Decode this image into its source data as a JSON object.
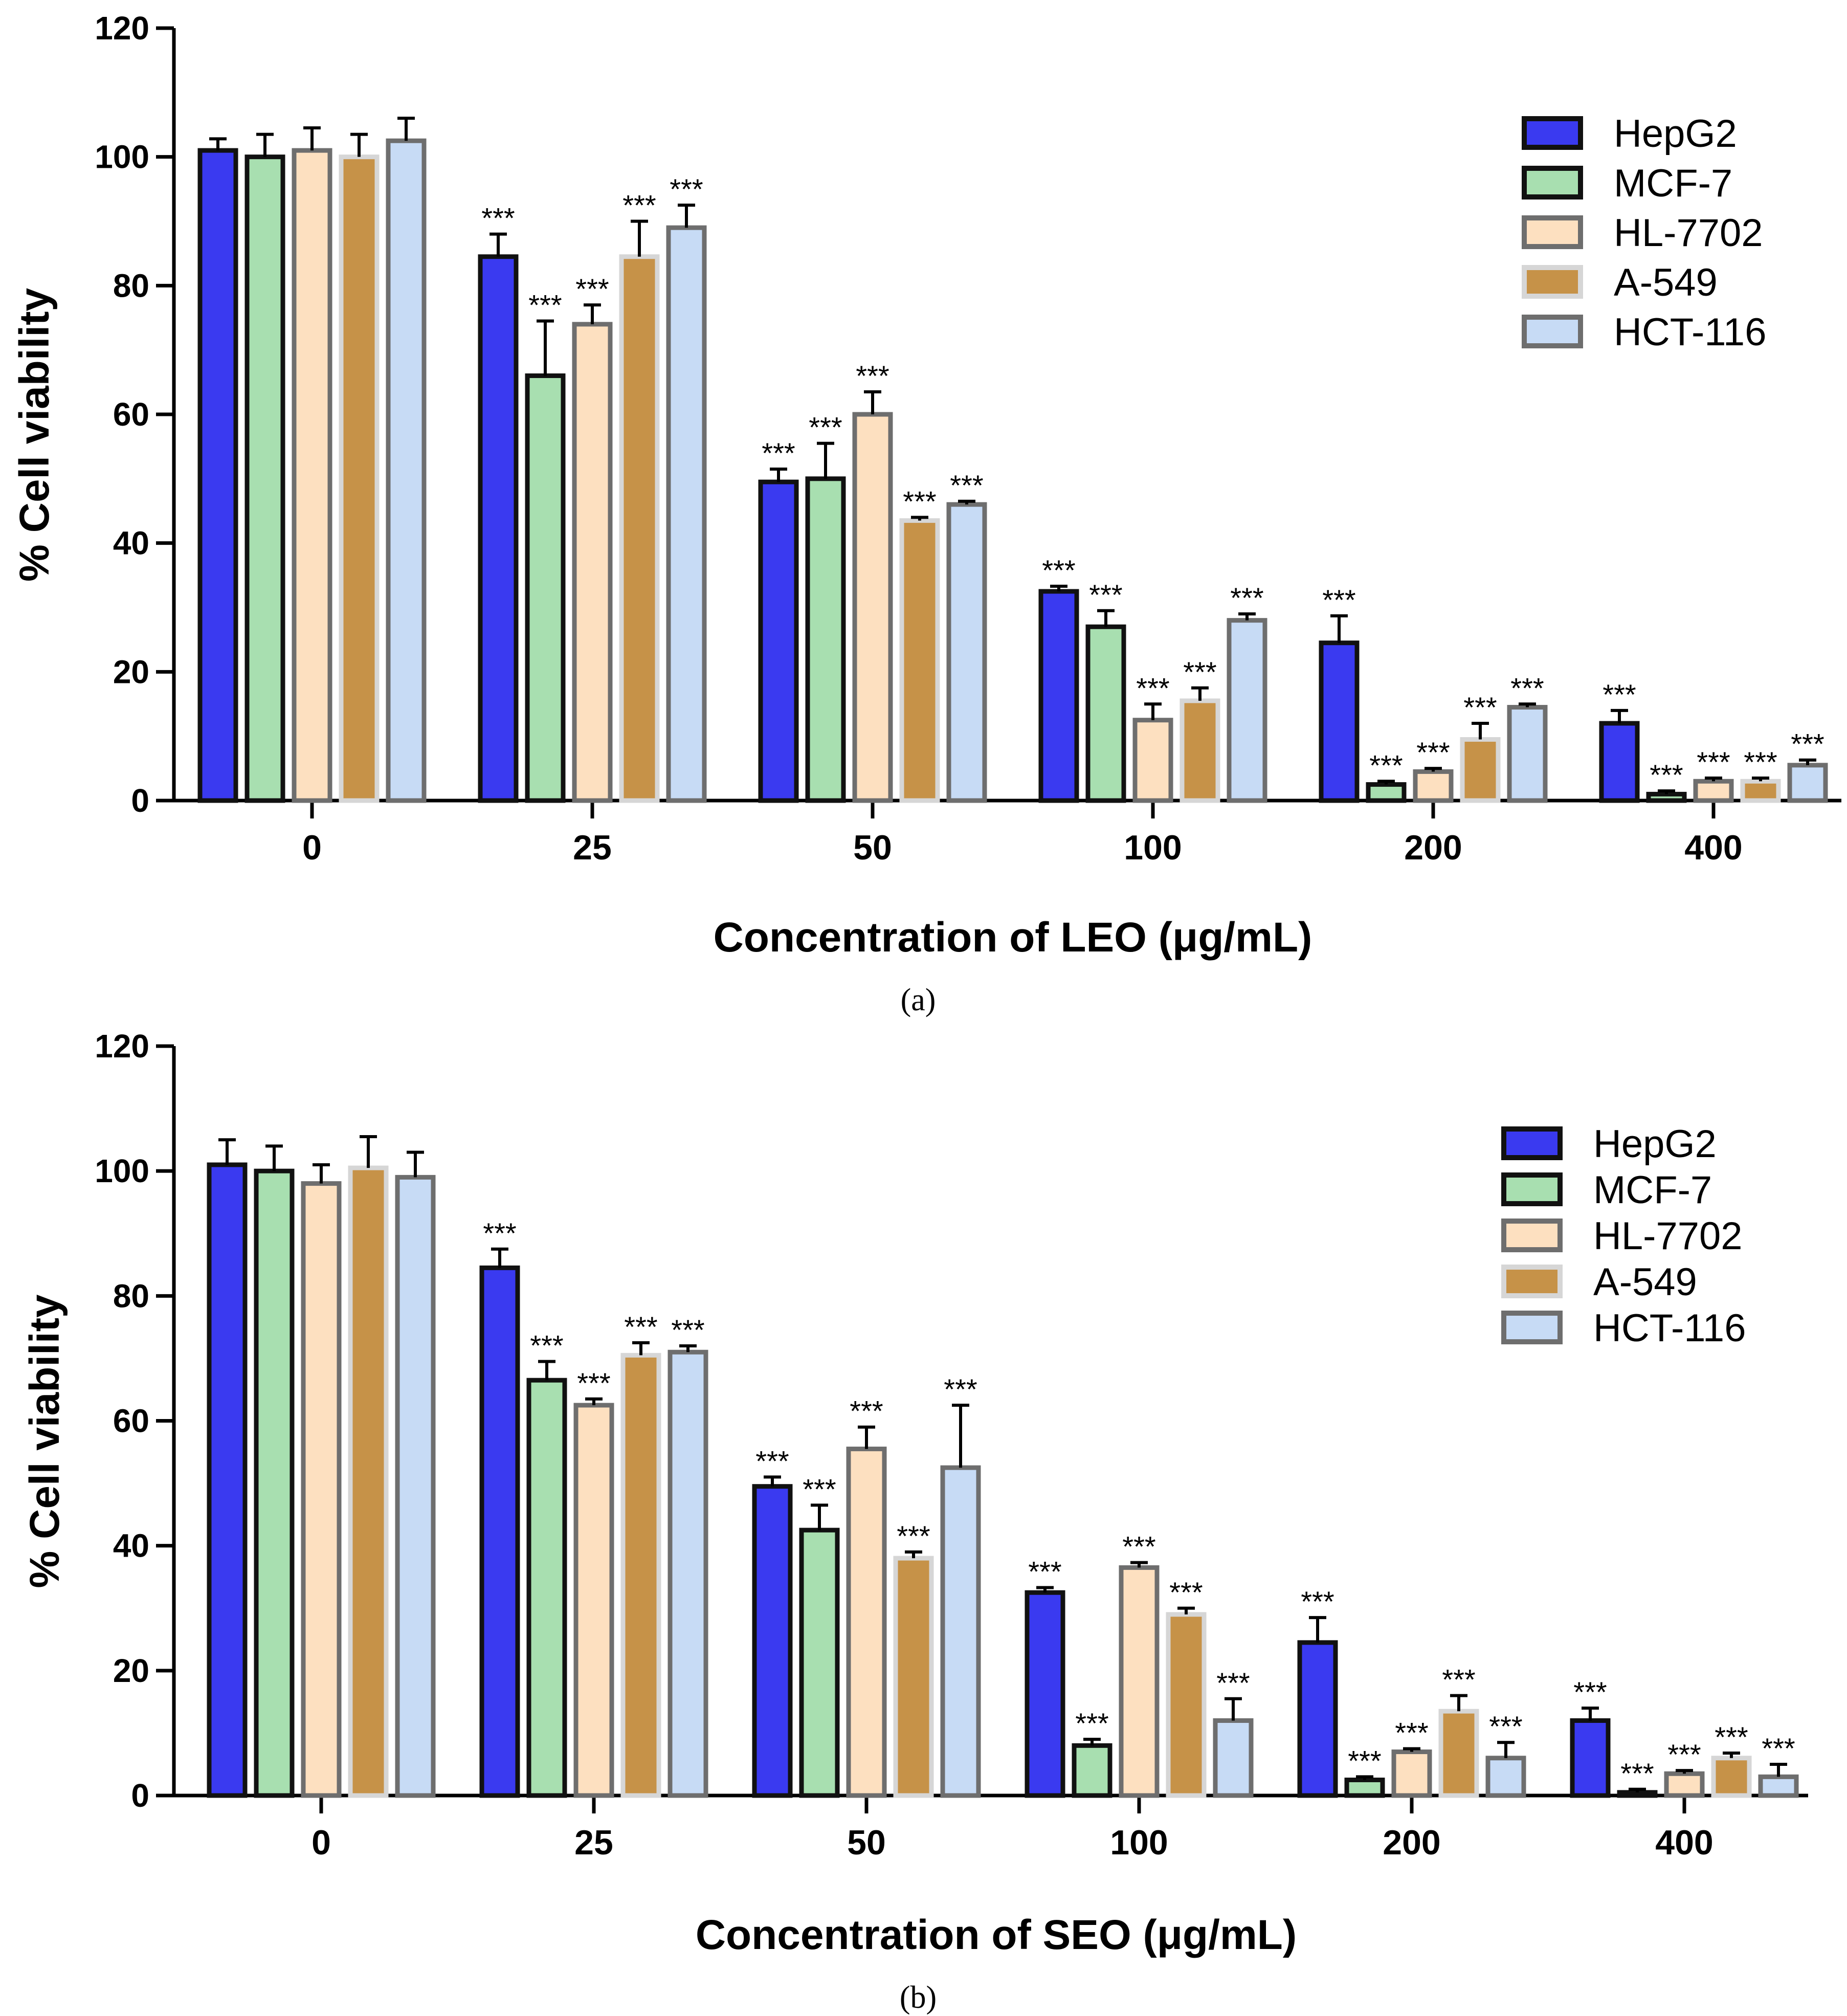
{
  "chart_data": [
    {
      "type": "bar",
      "panel_label": "(a)",
      "title": "",
      "xlabel": "Concentration of LEO (μg/mL)",
      "ylabel": "% Cell viability",
      "ylim": [
        0,
        120
      ],
      "yticks": [
        "0",
        "20",
        "40",
        "60",
        "80",
        "100",
        "120"
      ],
      "categories": [
        "0",
        "25",
        "50",
        "100",
        "200",
        "400"
      ],
      "legend_position": "top-right",
      "grid": false,
      "significance_marker": "***",
      "series": [
        {
          "name": "HepG2",
          "fill": "#3a3af0",
          "stroke": "#111111",
          "values": [
            101,
            84.5,
            49.5,
            32.5,
            24.5,
            12
          ],
          "errors": [
            1.8,
            3.5,
            2.0,
            0.8,
            4.2,
            2.0
          ],
          "sig": [
            false,
            true,
            true,
            true,
            true,
            true
          ]
        },
        {
          "name": "MCF-7",
          "fill": "#a8dfb0",
          "stroke": "#111111",
          "values": [
            100,
            66,
            50,
            27,
            2.5,
            1
          ],
          "errors": [
            3.5,
            8.5,
            5.5,
            2.5,
            0.5,
            0.5
          ],
          "sig": [
            false,
            true,
            true,
            true,
            true,
            true
          ]
        },
        {
          "name": "HL-7702",
          "fill": "#fde0c0",
          "stroke": "#6e6e6e",
          "values": [
            101,
            74,
            60,
            12.5,
            4.5,
            3
          ],
          "errors": [
            3.5,
            3.0,
            3.5,
            2.5,
            0.5,
            0.5
          ],
          "sig": [
            false,
            true,
            true,
            true,
            true,
            true
          ]
        },
        {
          "name": "A-549",
          "fill": "#c69248",
          "stroke": "#d6d6d6",
          "values": [
            100,
            84.5,
            43.5,
            15.5,
            9.5,
            3
          ],
          "errors": [
            3.5,
            5.5,
            0.5,
            2.0,
            2.5,
            0.5
          ],
          "sig": [
            false,
            true,
            true,
            true,
            true,
            true
          ]
        },
        {
          "name": "HCT-116",
          "fill": "#c7dbf5",
          "stroke": "#6e6e6e",
          "values": [
            102.5,
            89,
            46,
            28,
            14.5,
            5.5
          ],
          "errors": [
            3.5,
            3.5,
            0.5,
            1.0,
            0.5,
            0.8
          ],
          "sig": [
            false,
            true,
            true,
            true,
            true,
            true
          ]
        }
      ]
    },
    {
      "type": "bar",
      "panel_label": "(b)",
      "title": "",
      "xlabel": "Concentration of SEO (μg/mL)",
      "ylabel": "% Cell viability",
      "ylim": [
        0,
        120
      ],
      "yticks": [
        "0",
        "20",
        "40",
        "60",
        "80",
        "100",
        "120"
      ],
      "categories": [
        "0",
        "25",
        "50",
        "100",
        "200",
        "400"
      ],
      "legend_position": "top-right",
      "grid": false,
      "significance_marker": "***",
      "series": [
        {
          "name": "HepG2",
          "fill": "#3a3af0",
          "stroke": "#111111",
          "values": [
            101,
            84.5,
            49.5,
            32.5,
            24.5,
            12
          ],
          "errors": [
            4.0,
            3.0,
            1.5,
            0.8,
            4.0,
            2.0
          ],
          "sig": [
            false,
            true,
            true,
            true,
            true,
            true
          ]
        },
        {
          "name": "MCF-7",
          "fill": "#a8dfb0",
          "stroke": "#111111",
          "values": [
            100,
            66.5,
            42.5,
            8,
            2.5,
            0.5
          ],
          "errors": [
            4.0,
            3.0,
            4.0,
            1.0,
            0.5,
            0.5
          ],
          "sig": [
            false,
            true,
            true,
            true,
            true,
            true
          ]
        },
        {
          "name": "HL-7702",
          "fill": "#fde0c0",
          "stroke": "#6e6e6e",
          "values": [
            98,
            62.5,
            55.5,
            36.5,
            7,
            3.5
          ],
          "errors": [
            3.0,
            1.0,
            3.5,
            0.8,
            0.5,
            0.5
          ],
          "sig": [
            false,
            true,
            true,
            true,
            true,
            true
          ]
        },
        {
          "name": "A-549",
          "fill": "#c69248",
          "stroke": "#d6d6d6",
          "values": [
            100.5,
            70.5,
            38,
            29,
            13.5,
            6
          ],
          "errors": [
            5.0,
            2.0,
            1.0,
            1.0,
            2.5,
            0.8
          ],
          "sig": [
            false,
            true,
            true,
            true,
            true,
            true
          ]
        },
        {
          "name": "HCT-116",
          "fill": "#c7dbf5",
          "stroke": "#6e6e6e",
          "values": [
            99,
            71,
            52.5,
            12,
            6,
            3
          ],
          "errors": [
            4.0,
            1.0,
            10.0,
            3.5,
            2.5,
            2.0
          ],
          "sig": [
            false,
            true,
            true,
            true,
            true,
            true
          ]
        }
      ]
    }
  ]
}
